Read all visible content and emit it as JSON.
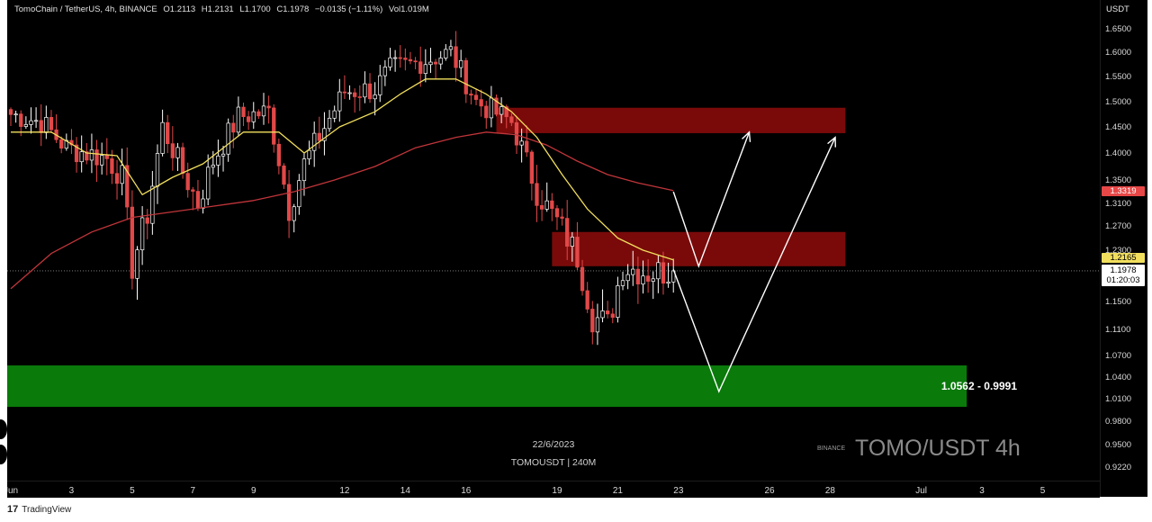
{
  "legend": {
    "pair": "TomoChain / TetherUS, 4h, BINANCE",
    "open": "O1.2113",
    "high": "H1.2131",
    "low": "L1.1700",
    "close": "C1.1978",
    "change": "−0.0135 (−1.11%)",
    "volume": "Vol1.019M"
  },
  "currency": "USDT",
  "badges": {
    "sma100_price": "1.3319",
    "sma20_price": "1.2165",
    "last_price": "1.1978",
    "countdown": "01:20:03"
  },
  "support_zone": {
    "label": "1.0562 - 0.9991",
    "top": 1.0562,
    "bottom": 0.9991
  },
  "watermark": {
    "date": "22/6/2023",
    "symbol": "TOMOUSDT | 240M",
    "exchange": "BINANCE",
    "title": "TOMO/USDT 4h"
  },
  "branding": {
    "logo": "17",
    "name": "TradingView"
  },
  "colors": {
    "background": "#000000",
    "bull": "#ffffff",
    "bear": "#e24848",
    "sma_fast": "#f2df5d",
    "sma_slow": "#c0353a",
    "resistance_zone": "#7a0a0a",
    "support_zone": "#0a7a0a",
    "projection": "#ffffff"
  },
  "chart_data": {
    "type": "candlestick",
    "symbol": "TOMOUSDT",
    "interval": "4h",
    "y_ticks": [
      1.65,
      1.6,
      1.55,
      1.5,
      1.45,
      1.4,
      1.35,
      1.31,
      1.27,
      1.23,
      1.15,
      1.11,
      1.07,
      1.04,
      1.01,
      0.98,
      0.95,
      0.922
    ],
    "y_tick_labels": [
      "1.6500",
      "1.6000",
      "1.5500",
      "1.5000",
      "1.4500",
      "1.4000",
      "1.3500",
      "1.3100",
      "1.2700",
      "1.2300",
      "1.1500",
      "1.1100",
      "1.0700",
      "1.0400",
      "1.0100",
      "0.9800",
      "0.9500",
      "0.9220"
    ],
    "x_ticks": [
      {
        "label": "Jun",
        "bar": 0
      },
      {
        "label": "3",
        "bar": 12
      },
      {
        "label": "5",
        "bar": 24
      },
      {
        "label": "7",
        "bar": 36
      },
      {
        "label": "9",
        "bar": 48
      },
      {
        "label": "12",
        "bar": 66
      },
      {
        "label": "14",
        "bar": 78
      },
      {
        "label": "16",
        "bar": 90
      },
      {
        "label": "19",
        "bar": 108
      },
      {
        "label": "21",
        "bar": 120
      },
      {
        "label": "23",
        "bar": 132
      },
      {
        "label": "26",
        "bar": 150
      },
      {
        "label": "28",
        "bar": 162
      },
      {
        "label": "Jul",
        "bar": 180
      },
      {
        "label": "3",
        "bar": 192
      },
      {
        "label": "5",
        "bar": 204
      }
    ],
    "first_bar_date": "2023-05-30",
    "anchors": [
      [
        0,
        1.475
      ],
      [
        6,
        1.46
      ],
      [
        11,
        1.41
      ],
      [
        19,
        1.39
      ],
      [
        22,
        1.355
      ],
      [
        24,
        1.205
      ],
      [
        27,
        1.29
      ],
      [
        30,
        1.45
      ],
      [
        34,
        1.365
      ],
      [
        37,
        1.31
      ],
      [
        40,
        1.385
      ],
      [
        45,
        1.47
      ],
      [
        51,
        1.48
      ],
      [
        55,
        1.3
      ],
      [
        58,
        1.38
      ],
      [
        62,
        1.45
      ],
      [
        66,
        1.52
      ],
      [
        72,
        1.525
      ],
      [
        75,
        1.565
      ],
      [
        81,
        1.58
      ],
      [
        87,
        1.6
      ],
      [
        92,
        1.5
      ],
      [
        99,
        1.46
      ],
      [
        104,
        1.33
      ],
      [
        109,
        1.265
      ],
      [
        112,
        1.22
      ],
      [
        115,
        1.13
      ],
      [
        118,
        1.115
      ],
      [
        121,
        1.205
      ],
      [
        126,
        1.195
      ],
      [
        131,
        1.1978
      ]
    ],
    "sma_fast": [
      [
        0,
        1.44
      ],
      [
        8,
        1.44
      ],
      [
        15,
        1.4
      ],
      [
        21,
        1.395
      ],
      [
        26,
        1.325
      ],
      [
        32,
        1.355
      ],
      [
        38,
        1.38
      ],
      [
        46,
        1.44
      ],
      [
        53,
        1.44
      ],
      [
        58,
        1.4
      ],
      [
        65,
        1.45
      ],
      [
        72,
        1.48
      ],
      [
        77,
        1.515
      ],
      [
        82,
        1.545
      ],
      [
        88,
        1.545
      ],
      [
        94,
        1.515
      ],
      [
        99,
        1.48
      ],
      [
        104,
        1.43
      ],
      [
        109,
        1.36
      ],
      [
        114,
        1.3
      ],
      [
        120,
        1.25
      ],
      [
        125,
        1.23
      ],
      [
        131,
        1.215
      ]
    ],
    "sma_slow": [
      [
        0,
        1.17
      ],
      [
        8,
        1.225
      ],
      [
        16,
        1.26
      ],
      [
        24,
        1.285
      ],
      [
        32,
        1.295
      ],
      [
        40,
        1.305
      ],
      [
        48,
        1.315
      ],
      [
        56,
        1.33
      ],
      [
        64,
        1.35
      ],
      [
        72,
        1.375
      ],
      [
        80,
        1.41
      ],
      [
        88,
        1.43
      ],
      [
        94,
        1.44
      ],
      [
        100,
        1.435
      ],
      [
        106,
        1.415
      ],
      [
        112,
        1.385
      ],
      [
        118,
        1.36
      ],
      [
        124,
        1.345
      ],
      [
        131,
        1.332
      ]
    ],
    "resistance_zones": [
      {
        "from_bar": 96,
        "to_bar": 165,
        "top": 1.488,
        "bottom": 1.438
      },
      {
        "from_bar": 107,
        "to_bar": 165,
        "top": 1.26,
        "bottom": 1.205
      }
    ],
    "support_zone": {
      "from_bar": 0,
      "to_bar": 189,
      "top": 1.0562,
      "bottom": 0.9991
    },
    "projection_paths": [
      [
        [
          131,
          1.33
        ],
        [
          136,
          1.205
        ],
        [
          146,
          1.44
        ]
      ],
      [
        [
          131,
          1.2
        ],
        [
          140,
          1.02
        ],
        [
          163,
          1.43
        ]
      ]
    ],
    "last_price": 1.1978,
    "sma_fast_last": 1.2165,
    "sma_slow_last": 1.3319
  }
}
